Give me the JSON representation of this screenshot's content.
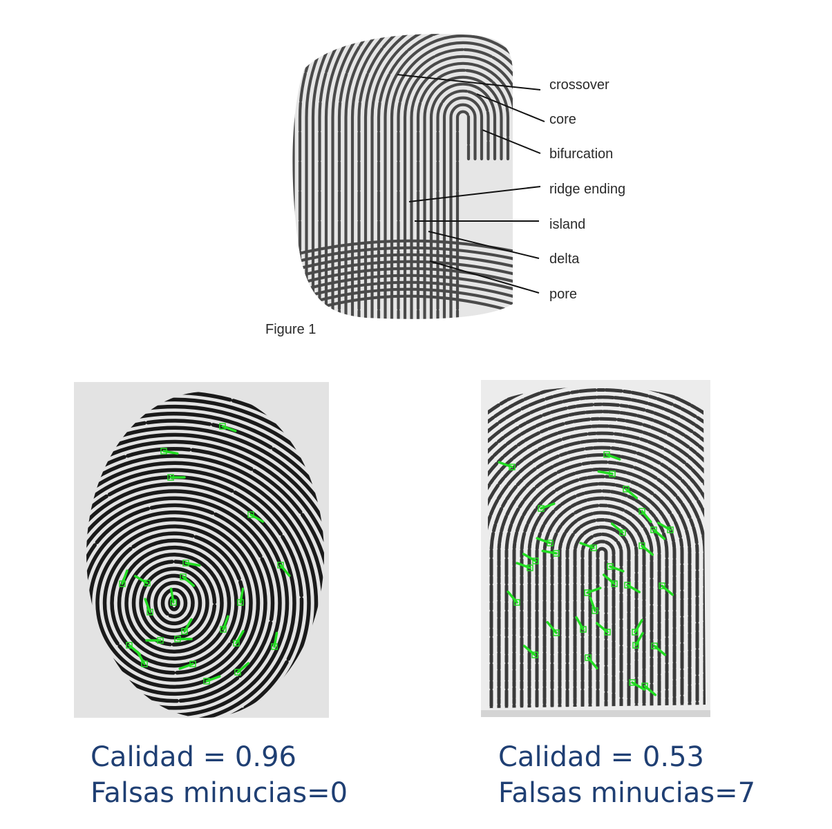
{
  "figure": {
    "caption": "Figure 1",
    "labels": [
      "crossover",
      "core",
      "bifurcation",
      "ridge ending",
      "island",
      "delta",
      "pore"
    ]
  },
  "samples": [
    {
      "quality_line": "Calidad = 0.96",
      "false_minutiae_line": "Falsas minucias=0"
    },
    {
      "quality_line": "Calidad = 0.53",
      "false_minutiae_line": "Falsas minucias=7"
    }
  ],
  "colors": {
    "caption_text": "#1f3f73",
    "minutia_marker": "#22dd22"
  }
}
